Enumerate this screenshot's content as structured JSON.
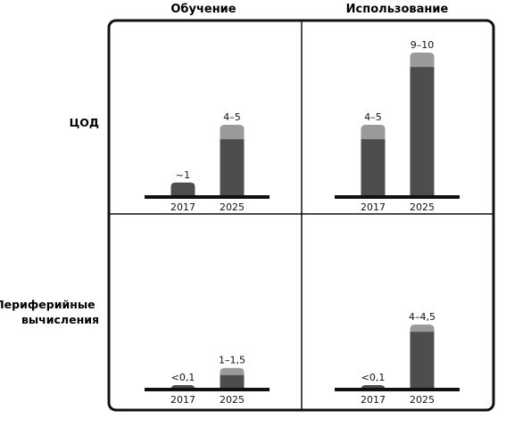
{
  "chart_data": {
    "type": "bar",
    "columns": [
      "Обучение",
      "Использование"
    ],
    "rows": [
      {
        "label_lines": [
          "ЦОД"
        ]
      },
      {
        "label_lines": [
          "Периферийные",
          "вычисления"
        ]
      }
    ],
    "categories": [
      "2017",
      "2025"
    ],
    "panels": [
      {
        "row": 0,
        "col": 0,
        "bars": [
          {
            "category": "2017",
            "low": 1,
            "high": 1,
            "label": "~1"
          },
          {
            "category": "2025",
            "low": 4,
            "high": 5,
            "label": "4–5"
          }
        ]
      },
      {
        "row": 0,
        "col": 1,
        "bars": [
          {
            "category": "2017",
            "low": 4,
            "high": 5,
            "label": "4–5"
          },
          {
            "category": "2025",
            "low": 9,
            "high": 10,
            "label": "9–10"
          }
        ]
      },
      {
        "row": 1,
        "col": 0,
        "bars": [
          {
            "category": "2017",
            "low": 0.1,
            "high": 0.1,
            "label": "<0,1"
          },
          {
            "category": "2025",
            "low": 1,
            "high": 1.5,
            "label": "1–1,5"
          }
        ]
      },
      {
        "row": 1,
        "col": 1,
        "bars": [
          {
            "category": "2017",
            "low": 0.1,
            "high": 0.1,
            "label": "<0,1"
          },
          {
            "category": "2025",
            "low": 4,
            "high": 4.5,
            "label": "4–4,5"
          }
        ]
      }
    ],
    "ylim": [
      0,
      10
    ],
    "grid": false,
    "legend": "none"
  },
  "colors": {
    "bar_dark": "#4d4d4d",
    "bar_range": "#9a9a9a",
    "frame": "#111111",
    "baseline": "#111111"
  }
}
